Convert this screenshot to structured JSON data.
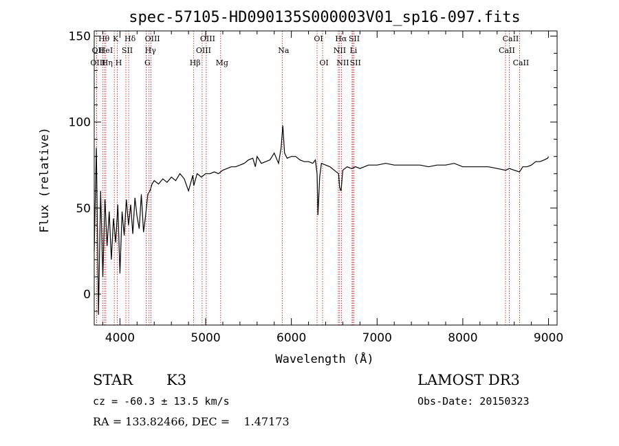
{
  "chart_data": {
    "type": "line",
    "title": "spec-57105-HD090135S000003V01_sp16-097.fits",
    "xlabel": "Wavelength (Å)",
    "ylabel": "Flux (relative)",
    "xlim": [
      3700,
      9100
    ],
    "ylim": [
      -18,
      153
    ],
    "x_ticks": [
      4000,
      5000,
      6000,
      7000,
      8000,
      9000
    ],
    "y_ticks": [
      0,
      50,
      100,
      150
    ],
    "spectrum_color": "#000000",
    "line_marker_color": "#c00000",
    "series": [
      {
        "name": "flux",
        "x": [
          3700,
          3725,
          3750,
          3775,
          3800,
          3825,
          3850,
          3875,
          3900,
          3925,
          3950,
          3975,
          4000,
          4025,
          4050,
          4075,
          4100,
          4125,
          4150,
          4175,
          4200,
          4225,
          4250,
          4275,
          4300,
          4325,
          4350,
          4375,
          4400,
          4450,
          4500,
          4550,
          4600,
          4650,
          4700,
          4750,
          4800,
          4850,
          4861,
          4900,
          4950,
          5000,
          5050,
          5100,
          5150,
          5200,
          5250,
          5300,
          5350,
          5400,
          5450,
          5500,
          5550,
          5580,
          5600,
          5650,
          5700,
          5750,
          5800,
          5850,
          5880,
          5900,
          5920,
          5950,
          6000,
          6050,
          6100,
          6150,
          6200,
          6250,
          6280,
          6300,
          6310,
          6330,
          6350,
          6400,
          6450,
          6500,
          6550,
          6563,
          6580,
          6600,
          6650,
          6700,
          6750,
          6800,
          6900,
          7000,
          7100,
          7200,
          7300,
          7400,
          7500,
          7600,
          7700,
          7800,
          7900,
          8000,
          8100,
          8200,
          8300,
          8400,
          8500,
          8542,
          8600,
          8662,
          8700,
          8750,
          8800,
          8850,
          8900,
          8950,
          8990,
          9000
        ],
        "values": [
          25,
          85,
          -12,
          60,
          10,
          55,
          28,
          48,
          20,
          44,
          30,
          52,
          12,
          48,
          34,
          55,
          40,
          52,
          35,
          56,
          45,
          38,
          58,
          36,
          46,
          58,
          60,
          64,
          66,
          64,
          67,
          65,
          68,
          66,
          70,
          67,
          60,
          69,
          63,
          70,
          68,
          70,
          70,
          71,
          70,
          72,
          73,
          74,
          74,
          75,
          76,
          78,
          79,
          74,
          80,
          76,
          77,
          78,
          82,
          76,
          85,
          98,
          82,
          79,
          80,
          80,
          78,
          77,
          77,
          76,
          78,
          70,
          46,
          68,
          76,
          75,
          74,
          72,
          70,
          62,
          60,
          72,
          74,
          73,
          74,
          73,
          75,
          75,
          76,
          75,
          75,
          75,
          75,
          74,
          75,
          75,
          76,
          74,
          74,
          74,
          74,
          73,
          72,
          73,
          72,
          71,
          74,
          74,
          75,
          77,
          77,
          78,
          79,
          80
        ]
      }
    ],
    "spectral_lines": [
      {
        "label": "Hθ",
        "wavelength": 3798,
        "row": 1
      },
      {
        "label": "OII",
        "wavelength": 3727,
        "row": 2
      },
      {
        "label": "OIII",
        "wavelength": 3727,
        "row": 3
      },
      {
        "label": "HeI",
        "wavelength": 3820,
        "row": 2
      },
      {
        "label": "Hη",
        "wavelength": 3835,
        "row": 3
      },
      {
        "label": "K",
        "wavelength": 3934,
        "row": 1
      },
      {
        "label": "SII",
        "wavelength": 4069,
        "row": 2
      },
      {
        "label": "H",
        "wavelength": 3969,
        "row": 3
      },
      {
        "label": "Hδ",
        "wavelength": 4102,
        "row": 1
      },
      {
        "label": "OIII",
        "wavelength": 4363,
        "row": 1
      },
      {
        "label": "Hγ",
        "wavelength": 4340,
        "row": 2
      },
      {
        "label": "G",
        "wavelength": 4305,
        "row": 3
      },
      {
        "label": "OIII",
        "wavelength": 5007,
        "row": 1
      },
      {
        "label": "OIII",
        "wavelength": 4959,
        "row": 2
      },
      {
        "label": "Hβ",
        "wavelength": 4861,
        "row": 3
      },
      {
        "label": "Mg",
        "wavelength": 5175,
        "row": 3
      },
      {
        "label": "Na",
        "wavelength": 5893,
        "row": 2
      },
      {
        "label": "OI",
        "wavelength": 6300,
        "row": 1
      },
      {
        "label": "OI",
        "wavelength": 6364,
        "row": 3
      },
      {
        "label": "Hα",
        "wavelength": 6563,
        "row": 1
      },
      {
        "label": "SII",
        "wavelength": 6717,
        "row": 1
      },
      {
        "label": "NII",
        "wavelength": 6548,
        "row": 2
      },
      {
        "label": "Li",
        "wavelength": 6708,
        "row": 2
      },
      {
        "label": "NII",
        "wavelength": 6584,
        "row": 3
      },
      {
        "label": "SII",
        "wavelength": 6731,
        "row": 3
      },
      {
        "label": "CaII",
        "wavelength": 8542,
        "row": 1
      },
      {
        "label": "CaII",
        "wavelength": 8498,
        "row": 2
      },
      {
        "label": "CaII",
        "wavelength": 8662,
        "row": 3
      }
    ]
  },
  "info": {
    "object_class": "STAR",
    "subclass": "K3",
    "survey": "LAMOST DR3",
    "redshift": "cz = -60.3 ± 13.5 km/s",
    "obs_date": "Obs-Date: 20150323",
    "coords": "RA = 133.82466, DEC =    1.47173"
  }
}
